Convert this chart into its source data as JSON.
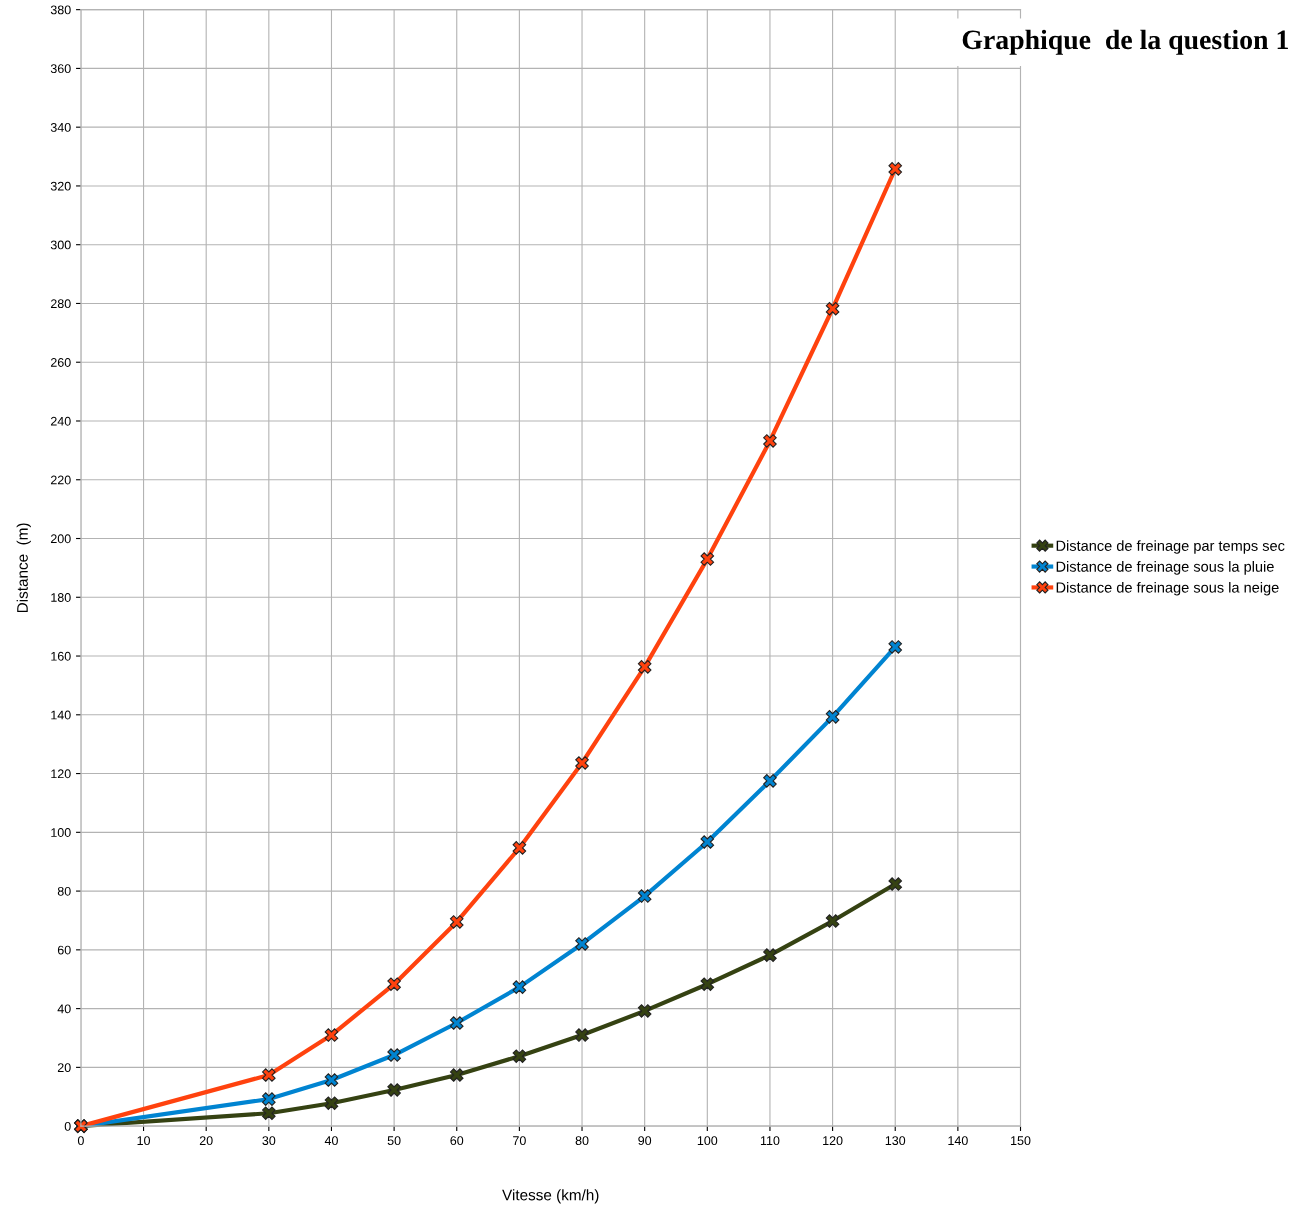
{
  "chart_data": {
    "type": "line",
    "title": "Graphique  de la question 1",
    "xlabel": "Vitesse (km/h)",
    "ylabel": "Distance  (m)",
    "x": [
      0,
      30,
      40,
      50,
      60,
      70,
      80,
      90,
      100,
      110,
      120,
      130
    ],
    "series": [
      {
        "name": "Distance de freinage par temps sec",
        "color": "#354212",
        "values": [
          0,
          4.4,
          7.8,
          12.3,
          17.4,
          23.8,
          31,
          39.2,
          48.3,
          58.2,
          69.8,
          82.4
        ]
      },
      {
        "name": "Distance de freinage sous la pluie",
        "color": "#0084d1",
        "values": [
          0,
          9.2,
          15.7,
          24.2,
          35.1,
          47.3,
          62,
          78.3,
          96.7,
          117.5,
          139.3,
          163.1
        ]
      },
      {
        "name": "Distance de freinage sous la neige",
        "color": "#ff420e",
        "values": [
          0,
          17.4,
          31,
          48.3,
          69.5,
          94.7,
          123.6,
          156.3,
          193,
          233.2,
          278.2,
          325.8
        ]
      }
    ],
    "xlim": [
      0,
      150
    ],
    "xticks": [
      0,
      10,
      20,
      30,
      40,
      50,
      60,
      70,
      80,
      90,
      100,
      110,
      120,
      130,
      140,
      150
    ],
    "ylim": [
      0,
      380
    ],
    "yticks": [
      0,
      20,
      40,
      60,
      80,
      100,
      120,
      140,
      160,
      180,
      200,
      220,
      240,
      260,
      280,
      300,
      320,
      340,
      360,
      380
    ],
    "grid": true,
    "legend": "right",
    "marker": "cross",
    "line_style": "solid"
  }
}
